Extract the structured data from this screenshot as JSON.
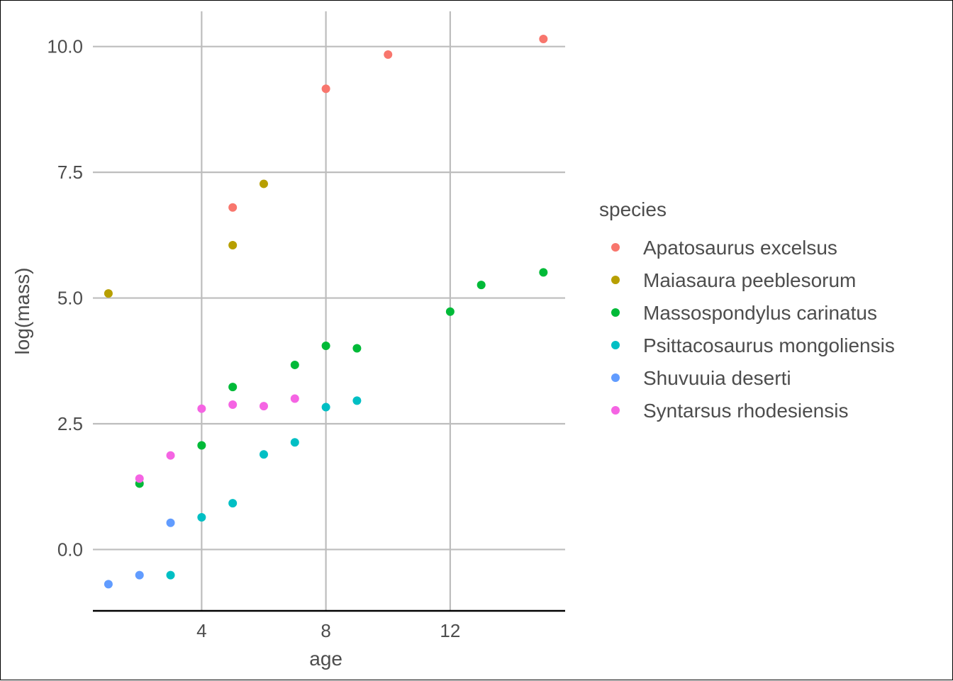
{
  "chart_data": {
    "type": "scatter",
    "xlabel": "age",
    "ylabel": "log(mass)",
    "xlim": [
      0.5,
      15.7
    ],
    "ylim": [
      -1.22,
      10.7
    ],
    "x_ticks": [
      {
        "value": 4,
        "label": "4"
      },
      {
        "value": 8,
        "label": "8"
      },
      {
        "value": 12,
        "label": "12"
      }
    ],
    "y_ticks": [
      {
        "value": 0,
        "label": "0.0"
      },
      {
        "value": 2.5,
        "label": "2.5"
      },
      {
        "value": 5,
        "label": "5.0"
      },
      {
        "value": 7.5,
        "label": "7.5"
      },
      {
        "value": 10,
        "label": "10.0"
      }
    ],
    "grid": true,
    "legend": {
      "title": "species",
      "placement": "right"
    },
    "series": [
      {
        "name": "Apatosaurus excelsus",
        "color": "#F8766D",
        "points": [
          [
            5,
            6.8
          ],
          [
            8,
            9.16
          ],
          [
            10,
            9.84
          ],
          [
            15,
            10.15
          ]
        ]
      },
      {
        "name": "Maiasaura peeblesorum",
        "color": "#B79F00",
        "points": [
          [
            1,
            5.09
          ],
          [
            5,
            6.05
          ],
          [
            6,
            7.27
          ]
        ]
      },
      {
        "name": "Massospondylus carinatus",
        "color": "#00BA38",
        "points": [
          [
            2,
            1.31
          ],
          [
            4,
            2.07
          ],
          [
            5,
            3.23
          ],
          [
            7,
            3.67
          ],
          [
            8,
            4.05
          ],
          [
            9,
            4.0
          ],
          [
            12,
            4.73
          ],
          [
            13,
            5.26
          ],
          [
            15,
            5.51
          ]
        ]
      },
      {
        "name": "Psittacosaurus mongoliensis",
        "color": "#00BFC4",
        "points": [
          [
            3,
            -0.51
          ],
          [
            4,
            0.64
          ],
          [
            5,
            0.92
          ],
          [
            6,
            1.89
          ],
          [
            7,
            2.13
          ],
          [
            8,
            2.83
          ],
          [
            9,
            2.96
          ]
        ]
      },
      {
        "name": "Shuvuuia deserti",
        "color": "#619CFF",
        "points": [
          [
            1,
            -0.69
          ],
          [
            2,
            -0.51
          ],
          [
            3,
            0.53
          ]
        ]
      },
      {
        "name": "Syntarsus rhodesiensis",
        "color": "#F564E3",
        "points": [
          [
            2,
            1.41
          ],
          [
            3,
            1.87
          ],
          [
            4,
            2.8
          ],
          [
            5,
            2.88
          ],
          [
            6,
            2.85
          ],
          [
            7,
            3.0
          ]
        ]
      }
    ]
  }
}
